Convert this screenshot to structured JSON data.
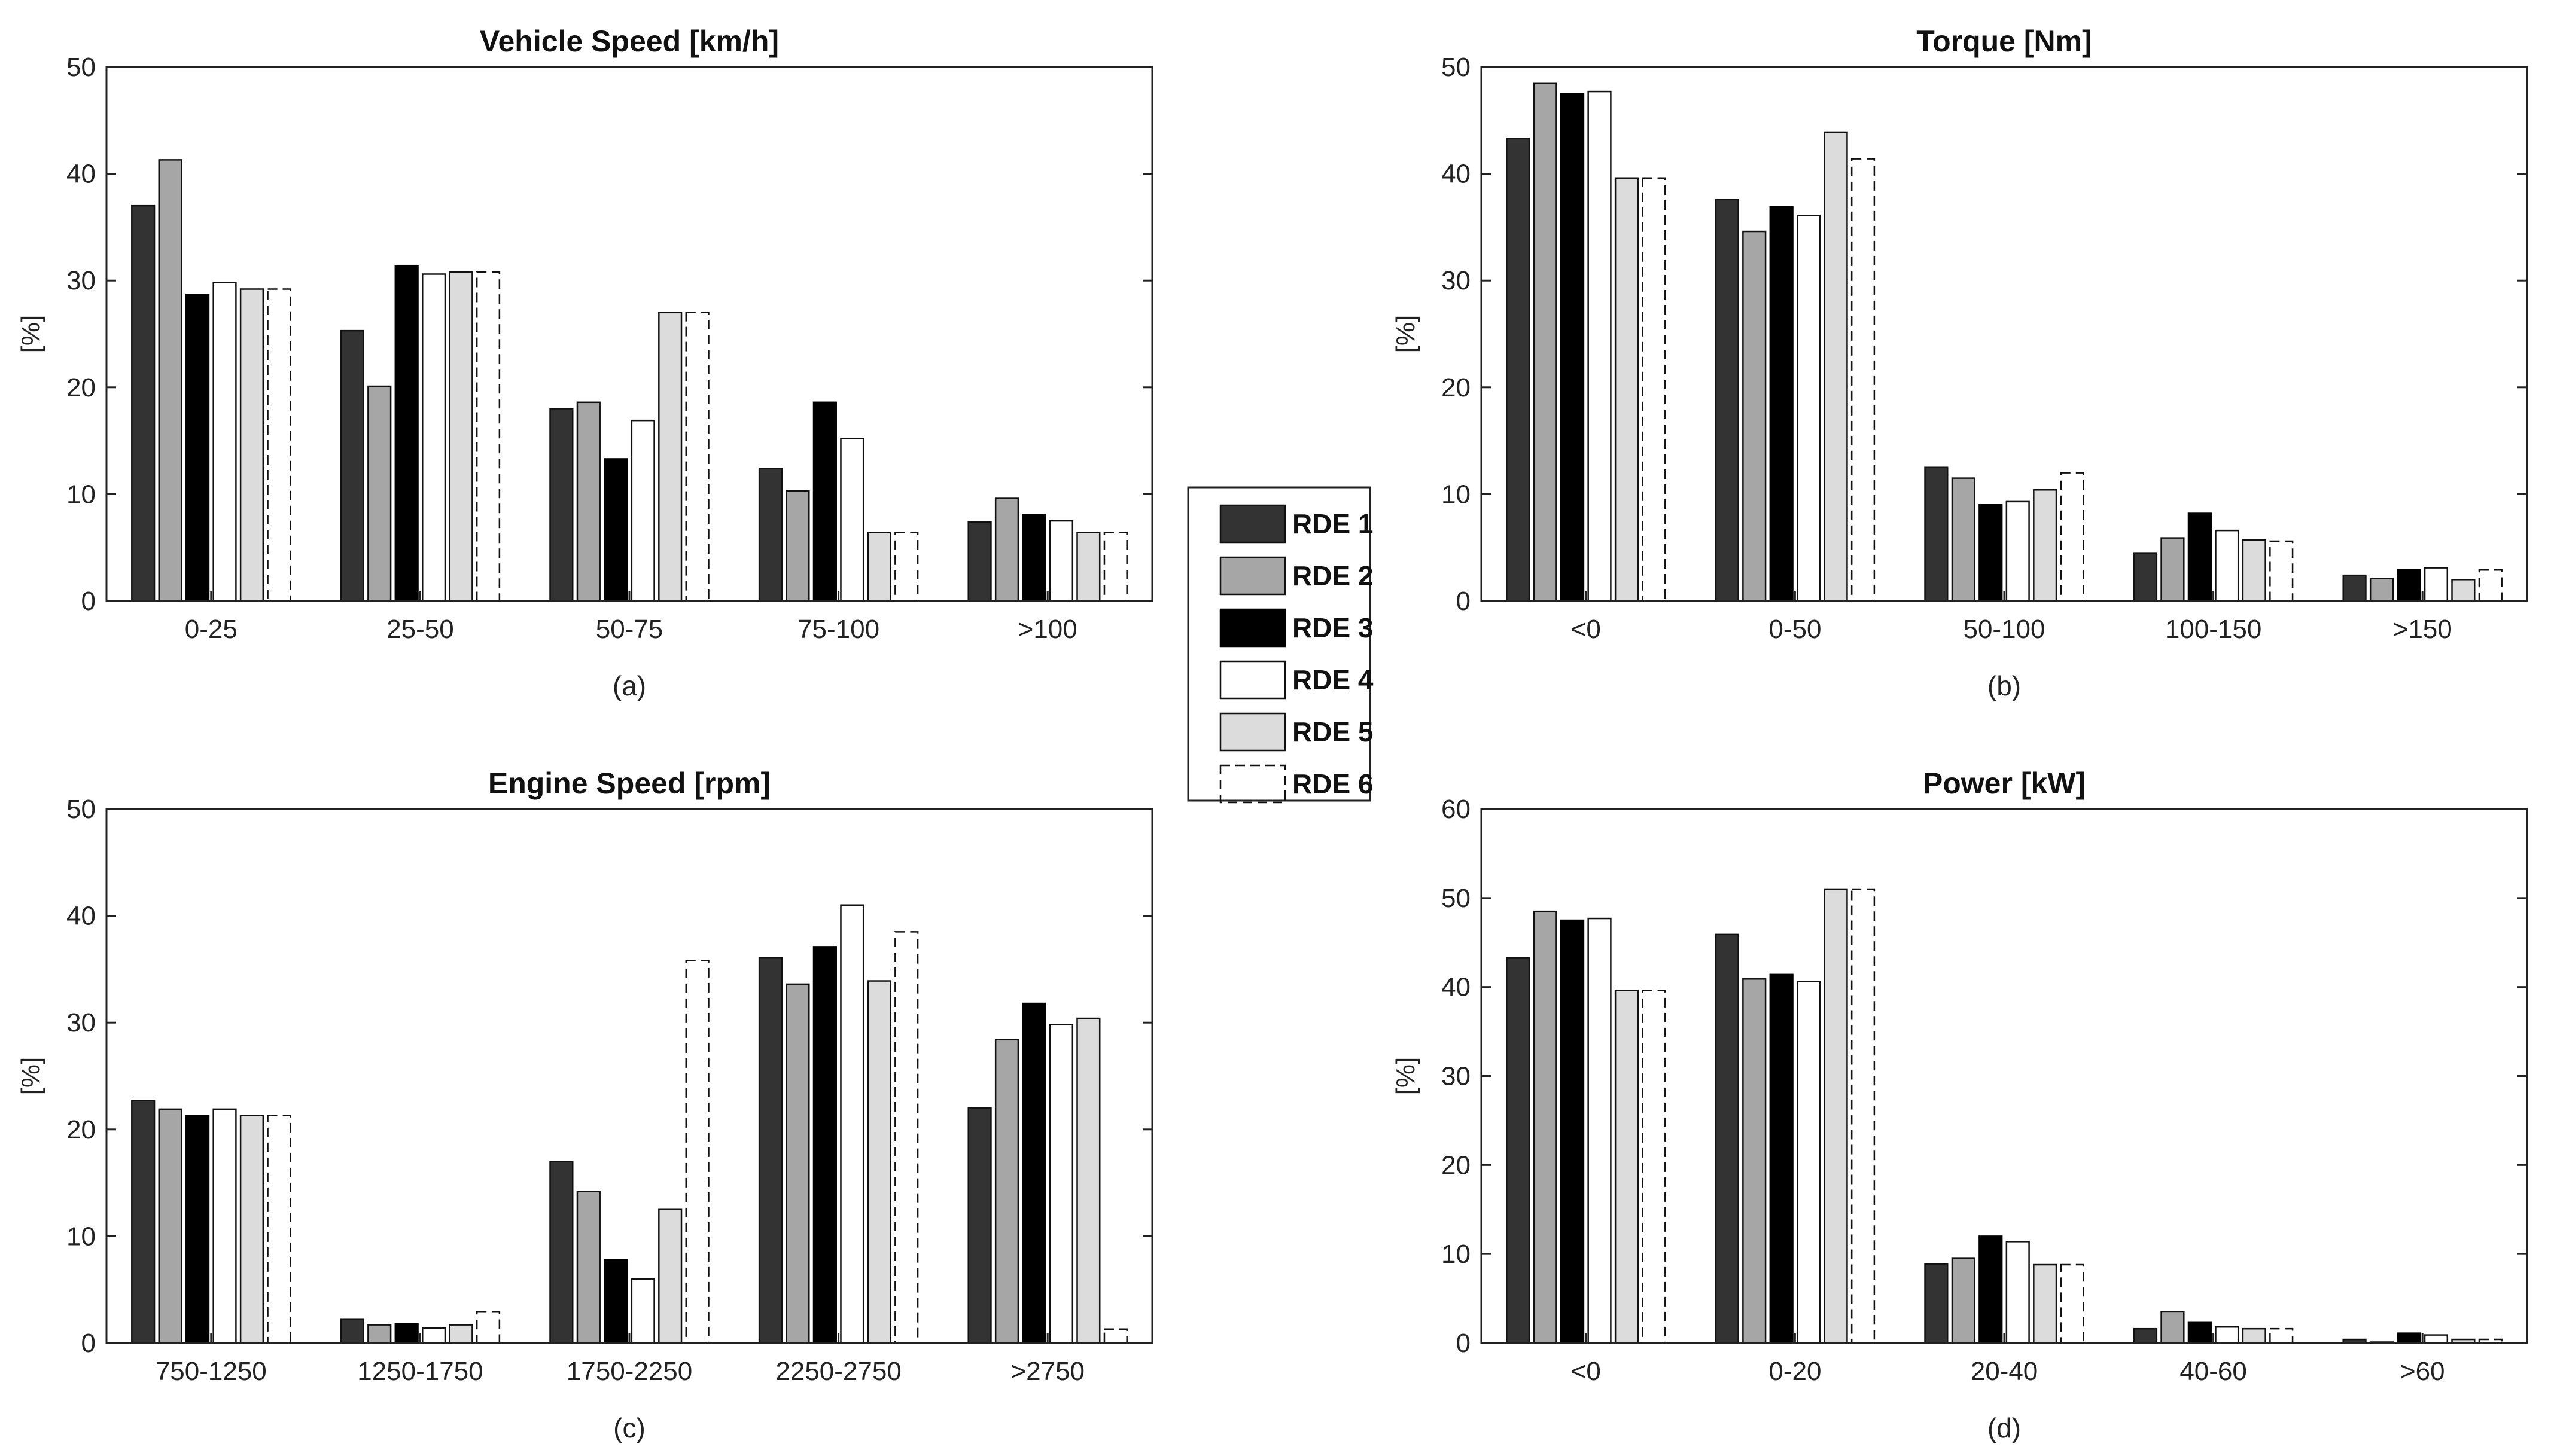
{
  "series_styles": [
    {
      "name": "RDE 1",
      "fill": "#333333",
      "stroke": "#111111",
      "dashed": false
    },
    {
      "name": "RDE 2",
      "fill": "#a6a6a6",
      "stroke": "#111111",
      "dashed": false
    },
    {
      "name": "RDE 3",
      "fill": "#000000",
      "stroke": "#000000",
      "dashed": false
    },
    {
      "name": "RDE 4",
      "fill": "#ffffff",
      "stroke": "#111111",
      "dashed": false
    },
    {
      "name": "RDE 5",
      "fill": "#dcdcdc",
      "stroke": "#111111",
      "dashed": false
    },
    {
      "name": "RDE 6",
      "fill": "#ffffff",
      "stroke": "#111111",
      "dashed": true
    }
  ],
  "legend": {
    "items": [
      "RDE 1",
      "RDE 2",
      "RDE 3",
      "RDE 4",
      "RDE 5",
      "RDE 6"
    ]
  },
  "chart_data": [
    {
      "type": "bar",
      "title": "Vehicle Speed [km/h]",
      "sublabel": "(a)",
      "ylabel": "[%]",
      "ylim": [
        0,
        50
      ],
      "yticks": [
        0,
        10,
        20,
        30,
        40,
        50
      ],
      "categories": [
        "0-25",
        "25-50",
        "50-75",
        "75-100",
        ">100"
      ],
      "series": [
        {
          "name": "RDE 1",
          "values": [
            37,
            25.3,
            18,
            12.4,
            7.4
          ]
        },
        {
          "name": "RDE 2",
          "values": [
            41.3,
            20.1,
            18.6,
            10.3,
            9.6
          ]
        },
        {
          "name": "RDE 3",
          "values": [
            28.7,
            31.4,
            13.3,
            18.6,
            8.1
          ]
        },
        {
          "name": "RDE 4",
          "values": [
            29.8,
            30.6,
            16.9,
            15.2,
            7.5
          ]
        },
        {
          "name": "RDE 5",
          "values": [
            29.2,
            30.8,
            27,
            6.4,
            6.4
          ]
        },
        {
          "name": "RDE 6",
          "values": [
            29.2,
            30.8,
            27,
            6.4,
            6.4
          ]
        }
      ]
    },
    {
      "type": "bar",
      "title": "Torque [Nm]",
      "sublabel": "(b)",
      "ylabel": "[%]",
      "ylim": [
        0,
        50
      ],
      "yticks": [
        0,
        10,
        20,
        30,
        40,
        50
      ],
      "categories": [
        "<0",
        "0-50",
        "50-100",
        "100-150",
        ">150"
      ],
      "series": [
        {
          "name": "RDE 1",
          "values": [
            43.3,
            37.6,
            12.5,
            4.5,
            2.4
          ]
        },
        {
          "name": "RDE 2",
          "values": [
            48.5,
            34.6,
            11.5,
            5.9,
            2.1
          ]
        },
        {
          "name": "RDE 3",
          "values": [
            47.5,
            36.9,
            9,
            8.2,
            2.9
          ]
        },
        {
          "name": "RDE 4",
          "values": [
            47.7,
            36.1,
            9.3,
            6.6,
            3.1
          ]
        },
        {
          "name": "RDE 5",
          "values": [
            39.6,
            43.9,
            10.4,
            5.7,
            2
          ]
        },
        {
          "name": "RDE 6",
          "values": [
            39.6,
            41.4,
            12,
            5.6,
            2.9
          ]
        }
      ]
    },
    {
      "type": "bar",
      "title": "Engine Speed [rpm]",
      "sublabel": "(c)",
      "ylabel": "[%]",
      "ylim": [
        0,
        50
      ],
      "yticks": [
        0,
        10,
        20,
        30,
        40,
        50
      ],
      "categories": [
        "750-1250",
        "1250-1750",
        "1750-2250",
        "2250-2750",
        ">2750"
      ],
      "series": [
        {
          "name": "RDE 1",
          "values": [
            22.7,
            2.2,
            17,
            36.1,
            22
          ]
        },
        {
          "name": "RDE 2",
          "values": [
            21.9,
            1.7,
            14.2,
            33.6,
            28.4
          ]
        },
        {
          "name": "RDE 3",
          "values": [
            21.3,
            1.8,
            7.8,
            37.1,
            31.8
          ]
        },
        {
          "name": "RDE 4",
          "values": [
            21.9,
            1.4,
            6,
            41,
            29.8
          ]
        },
        {
          "name": "RDE 5",
          "values": [
            21.3,
            1.7,
            12.5,
            33.9,
            30.4
          ]
        },
        {
          "name": "RDE 6",
          "values": [
            21.3,
            2.9,
            35.8,
            38.5,
            1.3
          ]
        }
      ]
    },
    {
      "type": "bar",
      "title": "Power [kW]",
      "sublabel": "(d)",
      "ylabel": "[%]",
      "ylim": [
        0,
        60
      ],
      "yticks": [
        0,
        10,
        20,
        30,
        40,
        50,
        60
      ],
      "categories": [
        "<0",
        "0-20",
        "20-40",
        "40-60",
        ">60"
      ],
      "series": [
        {
          "name": "RDE 1",
          "values": [
            43.3,
            45.9,
            8.9,
            1.6,
            0.4
          ]
        },
        {
          "name": "RDE 2",
          "values": [
            48.5,
            40.9,
            9.5,
            3.5,
            0.1
          ]
        },
        {
          "name": "RDE 3",
          "values": [
            47.5,
            41.4,
            12,
            2.3,
            1.1
          ]
        },
        {
          "name": "RDE 4",
          "values": [
            47.7,
            40.6,
            11.4,
            1.8,
            0.9
          ]
        },
        {
          "name": "RDE 5",
          "values": [
            39.6,
            51,
            8.8,
            1.6,
            0.4
          ]
        },
        {
          "name": "RDE 6",
          "values": [
            39.6,
            51,
            8.8,
            1.6,
            0.4
          ]
        }
      ]
    }
  ]
}
